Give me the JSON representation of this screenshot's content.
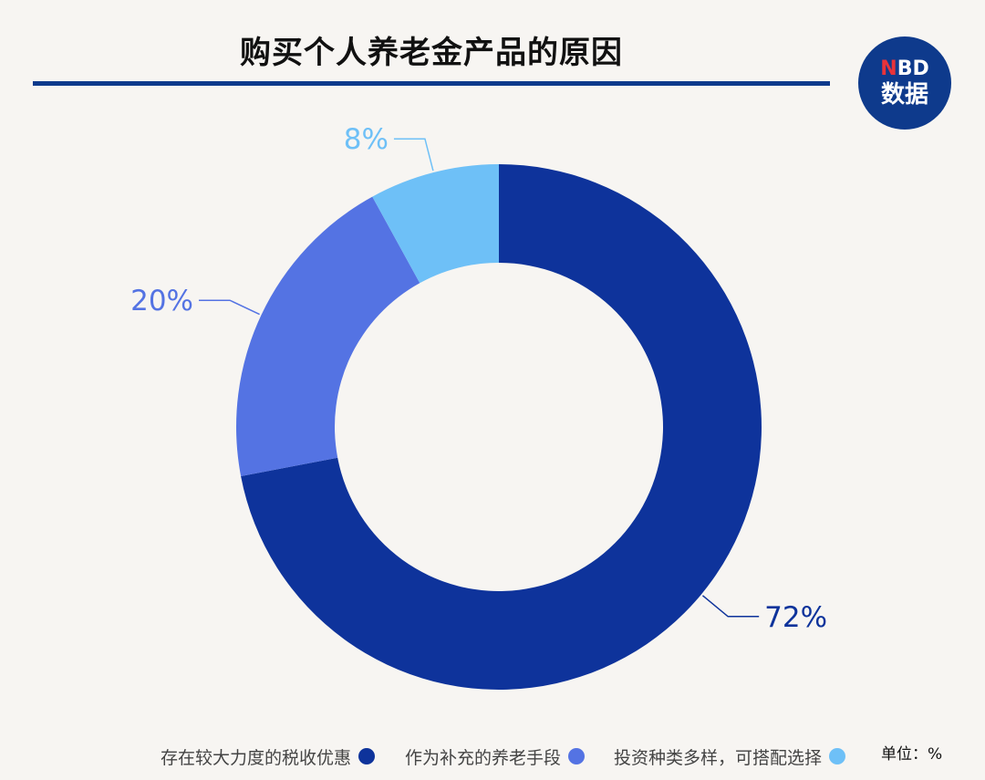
{
  "header": {
    "title": "购买个人养老金产品的原因",
    "logo_top": "NBD",
    "logo_bottom": "数据"
  },
  "unit_label": "单位：%",
  "colors": {
    "rule": "#0e3a8c",
    "series": [
      "#0e339b",
      "#5473e3",
      "#6ec0f7"
    ]
  },
  "chart_data": {
    "type": "pie",
    "style": "donut",
    "start_angle_deg": 0,
    "direction": "clockwise",
    "title": "购买个人养老金产品的原因",
    "unit": "%",
    "legend_position": "bottom",
    "slices": [
      {
        "label": "存在较大力度的税收优惠",
        "value": 72,
        "value_label": "72%",
        "color": "#0e339b"
      },
      {
        "label": "作为补充的养老手段",
        "value": 20,
        "value_label": "20%",
        "color": "#5473e3"
      },
      {
        "label": "投资种类多样，可搭配选择",
        "value": 8,
        "value_label": "8%",
        "color": "#6ec0f7"
      }
    ]
  }
}
